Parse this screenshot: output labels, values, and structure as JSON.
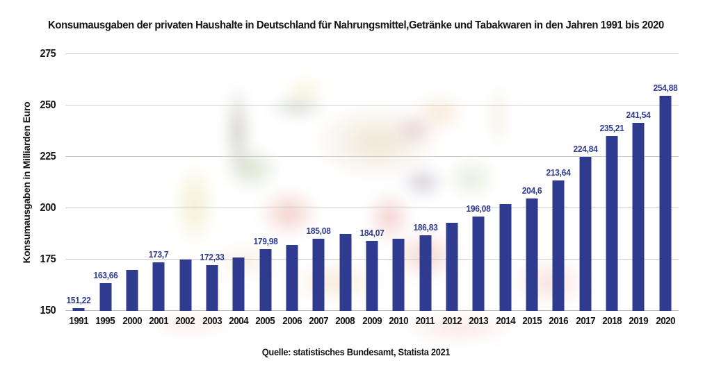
{
  "chart_data": {
    "type": "bar",
    "title": "Konsumausgaben der privaten Haushalte in Deutschland für Nahrungsmittel,Getränke und Tabakwaren in den Jahren 1991 bis 2020",
    "ylabel": "Konsumausgaben in Milliarden Euro",
    "source": "Quelle: statistisches Bundesamt, Statista 2021",
    "categories": [
      "1991",
      "1995",
      "2000",
      "2001",
      "2002",
      "2003",
      "2004",
      "2005",
      "2006",
      "2007",
      "2008",
      "2009",
      "2010",
      "2011",
      "2012",
      "2013",
      "2014",
      "2015",
      "2016",
      "2017",
      "2018",
      "2019",
      "2020"
    ],
    "values": [
      151.22,
      163.66,
      170,
      173.7,
      175,
      172.33,
      176,
      179.98,
      182,
      185.08,
      187.5,
      184.07,
      185,
      186.83,
      193,
      196.08,
      202,
      204.6,
      213.64,
      224.84,
      235.21,
      241.54,
      254.88
    ],
    "bar_labels": [
      "151,22",
      "163,66",
      null,
      "173,7",
      null,
      "172,33",
      null,
      "179,98",
      null,
      "185,08",
      null,
      "184,07",
      null,
      "186,83",
      null,
      "196,08",
      null,
      "204,6",
      "213,64",
      "224,84",
      "235,21",
      "241,54",
      "254,88"
    ],
    "ylim": [
      150,
      275
    ],
    "yticks": [
      150,
      175,
      200,
      225,
      250,
      275
    ],
    "grid": true,
    "legend": false,
    "bar_color": "#2e3b8e",
    "bar_label_color": "#2e3b8e",
    "axis_text_color": "#141414",
    "grid_color": "#cdcdcd"
  }
}
